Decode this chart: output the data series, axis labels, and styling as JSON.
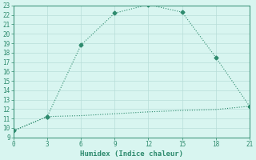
{
  "xlabel": "Humidex (Indice chaleur)",
  "line1_x": [
    0,
    3,
    6,
    9,
    12,
    15,
    18,
    21
  ],
  "line1_y": [
    9.7,
    11.2,
    18.8,
    22.2,
    23.1,
    22.3,
    17.5,
    12.3
  ],
  "line2_x": [
    0,
    3,
    6,
    9,
    12,
    15,
    18,
    21
  ],
  "line2_y": [
    9.7,
    11.2,
    11.3,
    11.5,
    11.7,
    11.85,
    11.95,
    12.3
  ],
  "line1_marker_indices": [
    1,
    2,
    3,
    4,
    5,
    6
  ],
  "line2_marker_indices": [
    1
  ],
  "shared_marker_indices": [
    0,
    7
  ],
  "line_color": "#2e8b6e",
  "bg_color": "#d8f5f0",
  "grid_color": "#b8ddd8",
  "xlim": [
    0,
    21
  ],
  "ylim": [
    9,
    23
  ],
  "xticks": [
    0,
    3,
    6,
    9,
    12,
    15,
    18,
    21
  ],
  "yticks": [
    9,
    10,
    11,
    12,
    13,
    14,
    15,
    16,
    17,
    18,
    19,
    20,
    21,
    22,
    23
  ],
  "markersize": 2.5,
  "linewidth": 0.8,
  "tick_labelsize": 5.5,
  "xlabel_fontsize": 6.5
}
